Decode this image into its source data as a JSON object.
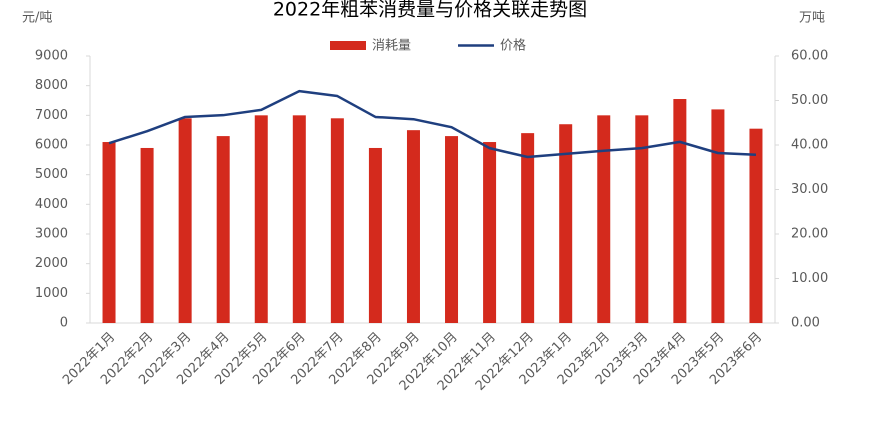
{
  "chart_data": {
    "type": "bar",
    "title": "2022年粗苯消费量与价格关联走势图",
    "y_axis_label": "元/吨",
    "y2_axis_label": "万吨",
    "categories": [
      "2022年1月",
      "2022年2月",
      "2022年3月",
      "2022年4月",
      "2022年5月",
      "2022年6月",
      "2022年7月",
      "2022年8月",
      "2022年9月",
      "2022年10月",
      "2022年11月",
      "2022年12月",
      "2023年1月",
      "2023年2月",
      "2023年3月",
      "2023年4月",
      "2023年5月",
      "2023年6月"
    ],
    "series": [
      {
        "name": "消耗量",
        "type": "bar",
        "color": "#d42a1d",
        "values": [
          6100,
          5900,
          6900,
          6300,
          7000,
          7000,
          6900,
          5900,
          6500,
          6300,
          6100,
          6400,
          6700,
          7000,
          7000,
          7550,
          7200,
          6550
        ]
      },
      {
        "name": "价格",
        "type": "line",
        "axis": "y2",
        "color": "#1f3f7f",
        "values": [
          40.4,
          43.1,
          46.3,
          46.7,
          47.9,
          52.1,
          51.0,
          46.3,
          45.8,
          44.0,
          39.3,
          37.3,
          38.0,
          38.7,
          39.3,
          40.7,
          38.2,
          37.8
        ]
      }
    ],
    "ylim": [
      0,
      9000
    ],
    "yticks": [
      0,
      1000,
      2000,
      3000,
      4000,
      5000,
      6000,
      7000,
      8000,
      9000
    ],
    "y2lim": [
      0,
      60
    ],
    "y2ticks": [
      {
        "value": 0,
        "label": "0.00"
      },
      {
        "value": 10,
        "label": "10.00"
      },
      {
        "value": 20,
        "label": "20.00"
      },
      {
        "value": 30,
        "label": "30.00"
      },
      {
        "value": 40,
        "label": "40.00"
      },
      {
        "value": 50,
        "label": "50.00"
      },
      {
        "value": 60,
        "label": "60.00"
      }
    ],
    "grid": false
  }
}
